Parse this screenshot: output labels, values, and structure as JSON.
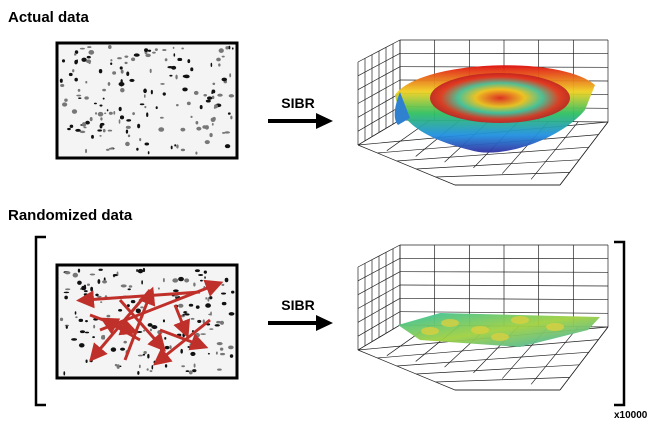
{
  "sections": [
    {
      "title": "Actual data",
      "arrow_label": "SIBR"
    },
    {
      "title": "Randomized data",
      "arrow_label": "SIBR"
    }
  ],
  "multiplier": "x10000"
}
